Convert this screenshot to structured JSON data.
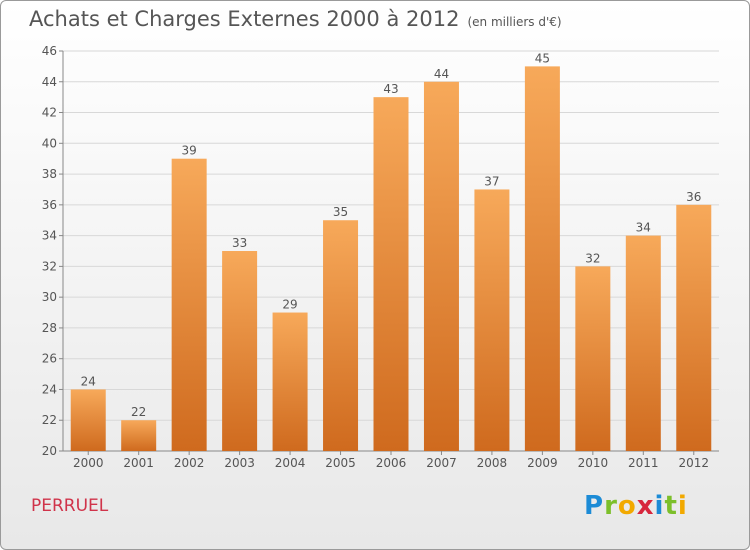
{
  "title": "Achats et Charges Externes 2000 à 2012",
  "unit": "(en milliers d'€)",
  "commune": "PERRUEL",
  "logo": {
    "text": "Proxiti",
    "letters": [
      "P",
      "r",
      "o",
      "x",
      "i",
      "t",
      "i"
    ],
    "colors": [
      "#1c8bd6",
      "#7cbf2a",
      "#f2a900",
      "#d7263d",
      "#1c8bd6",
      "#7cbf2a",
      "#f2a900"
    ]
  },
  "colors": {
    "bar_light": "#f7a95a",
    "bar_dark": "#cf6a1e",
    "grid": "#d8d8d8",
    "text": "#555555"
  },
  "chart_data": {
    "type": "bar",
    "title": "Achats et Charges Externes 2000 à 2012",
    "xlabel": "",
    "ylabel": "",
    "categories": [
      "2000",
      "2001",
      "2002",
      "2003",
      "2004",
      "2005",
      "2006",
      "2007",
      "2008",
      "2009",
      "2010",
      "2011",
      "2012"
    ],
    "values": [
      24,
      22,
      39,
      33,
      29,
      35,
      43,
      44,
      37,
      45,
      32,
      34,
      36
    ],
    "ylim": [
      20,
      46
    ],
    "yticks": [
      20,
      22,
      24,
      26,
      28,
      30,
      32,
      34,
      36,
      38,
      40,
      42,
      44,
      46
    ],
    "grid": true
  }
}
